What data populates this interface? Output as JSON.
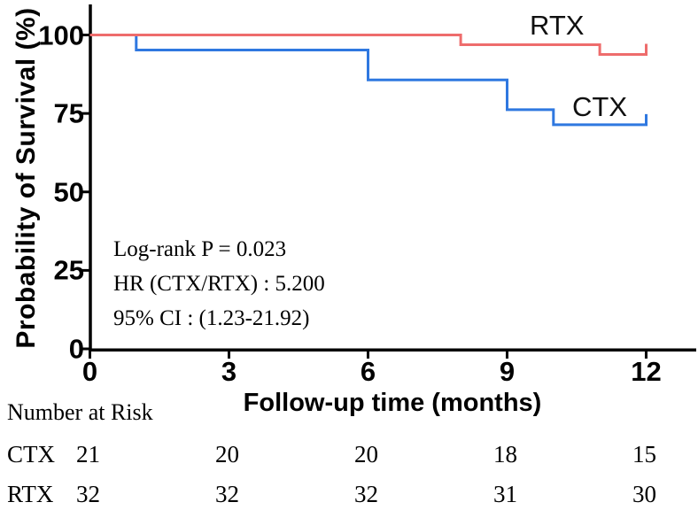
{
  "figure": {
    "background": "#ffffff",
    "axis_color": "#000000",
    "text_color": "#000000"
  },
  "chart_data": {
    "type": "line",
    "subtype": "kaplan-meier-step-survival",
    "title": "",
    "xlabel": "Follow-up time (months)",
    "ylabel": "Probability of Survival (%)",
    "xlim": [
      0,
      13.1
    ],
    "ylim": [
      0,
      100
    ],
    "x_ticks": [
      0,
      3,
      6,
      9,
      12
    ],
    "y_ticks": [
      0,
      25,
      50,
      75,
      100
    ],
    "grid": false,
    "legend_position": "labels-on-plot",
    "series": [
      {
        "name": "CTX",
        "color": "#2f78e0",
        "steps": [
          [
            0,
            100
          ],
          [
            1,
            95.2
          ],
          [
            6,
            85.7
          ],
          [
            9,
            76.2
          ],
          [
            10,
            71.4
          ],
          [
            12,
            71.4
          ]
        ],
        "end_censor_tick": true
      },
      {
        "name": "RTX",
        "color": "#ee6c6c",
        "steps": [
          [
            0,
            100
          ],
          [
            8,
            96.9
          ],
          [
            11,
            93.8
          ],
          [
            12,
            93.8
          ]
        ],
        "end_censor_tick": true
      }
    ],
    "annotations": [
      "Log-rank P = 0.023",
      "HR (CTX/RTX) : 5.200",
      "95% CI : (1.23-21.92)"
    ]
  },
  "risk_table": {
    "title": "Number at Risk",
    "time_points": [
      0,
      3,
      6,
      9,
      12
    ],
    "rows": [
      {
        "label": "CTX",
        "values": [
          "21",
          "20",
          "20",
          "18",
          "15"
        ]
      },
      {
        "label": "RTX",
        "values": [
          "32",
          "32",
          "32",
          "31",
          "30"
        ]
      }
    ]
  }
}
